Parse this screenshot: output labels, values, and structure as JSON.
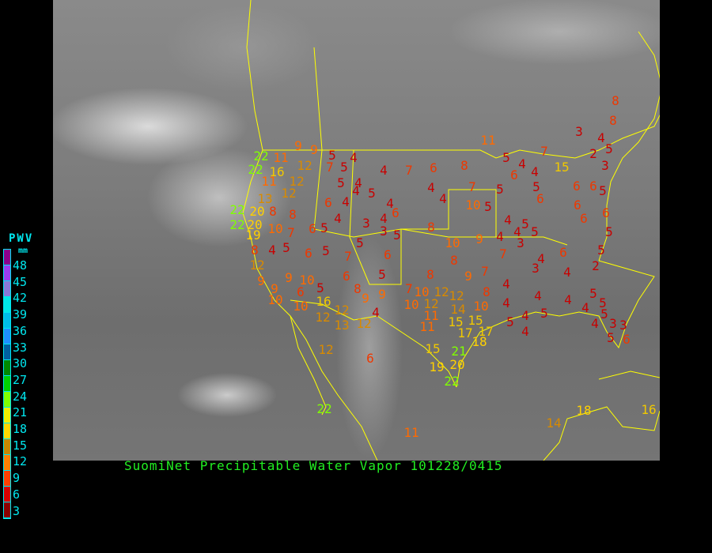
{
  "caption": "SuomiNet Precipitable Water Vapor 101228/0415",
  "legend": {
    "title": "PWV",
    "unit": "mm",
    "ticks": [
      "48",
      "45",
      "42",
      "39",
      "36",
      "33",
      "30",
      "27",
      "24",
      "21",
      "18",
      "15",
      "12",
      "9",
      "6",
      "3"
    ],
    "colors": [
      "#8b008b",
      "#9a3cf0",
      "#8a78d8",
      "#00e8e8",
      "#00bce8",
      "#1e90ff",
      "#0060a0",
      "#008800",
      "#00d000",
      "#80ff00",
      "#f0f000",
      "#ffd700",
      "#c88800",
      "#ff8000",
      "#ff4000",
      "#d80000",
      "#8b0000"
    ]
  },
  "map": {
    "boundary_color": "#ffff00",
    "station_values": [
      3,
      4,
      5,
      2,
      3,
      8,
      8,
      9,
      9,
      5,
      4,
      4,
      7,
      6,
      8,
      11,
      5,
      4,
      6,
      4,
      7,
      15,
      5,
      6,
      6,
      6,
      5,
      11,
      12,
      7,
      5,
      22,
      22,
      11,
      12,
      16,
      12,
      13,
      5,
      4,
      5,
      4,
      4,
      7,
      5,
      10,
      5,
      22,
      20,
      8,
      8,
      6,
      4,
      4,
      4,
      6,
      22,
      20,
      10,
      7,
      6,
      5,
      4,
      3,
      4,
      3,
      5,
      8,
      19,
      8,
      4,
      5,
      6,
      5,
      7,
      5,
      6,
      10,
      9,
      4,
      4,
      5,
      5,
      3,
      4,
      6,
      6,
      6,
      5,
      6,
      5,
      2,
      4,
      3,
      4,
      12,
      9,
      9,
      9,
      10,
      6,
      5,
      6,
      8,
      5,
      8,
      8,
      9,
      7,
      7,
      4,
      8,
      10,
      10,
      16,
      9,
      9,
      7,
      10,
      12,
      12,
      12,
      10,
      14,
      4,
      4,
      4,
      5,
      5,
      12,
      12,
      13,
      12,
      4,
      10,
      11,
      15,
      15,
      4,
      5,
      4,
      5,
      3,
      3,
      5,
      4,
      11,
      17,
      17,
      18,
      4,
      5,
      6,
      12,
      6,
      15,
      21,
      19,
      20,
      22,
      22,
      11,
      14,
      18,
      16
    ]
  }
}
